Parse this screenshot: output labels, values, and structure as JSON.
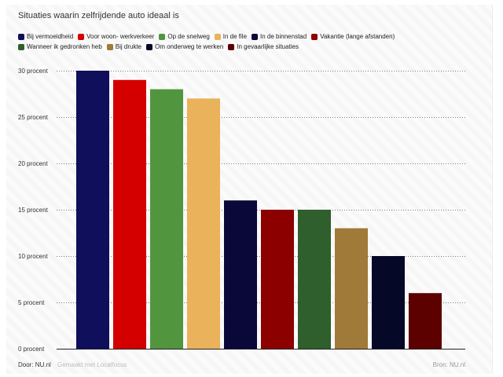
{
  "chart_data": {
    "type": "bar",
    "title": "Situaties waarin zelfrijdende auto ideaal is",
    "categories": [
      "Bij vermoeidheid",
      "Voor woon- werkverkeer",
      "Op de snelweg",
      "In de file",
      "In de binnenstad",
      "Vakantie (lange afstanden)",
      "Wanneer ik gedronken heb",
      "Bij drukte",
      "Om onderweg te werken",
      "In gevaarlijke situaties"
    ],
    "values": [
      30,
      29,
      28,
      27,
      16,
      15,
      15,
      13,
      10,
      6
    ],
    "colors": [
      "#0f0f5c",
      "#d40000",
      "#52953f",
      "#eab25a",
      "#0a0838",
      "#8c0000",
      "#2f5f2c",
      "#9f7a38",
      "#050826",
      "#5c0000"
    ],
    "ylim": [
      0,
      30
    ],
    "yticks": [
      {
        "value": 0,
        "label": "0 procent"
      },
      {
        "value": 5,
        "label": "5 procent"
      },
      {
        "value": 10,
        "label": "10 procent"
      },
      {
        "value": 15,
        "label": "15 procent"
      },
      {
        "value": 20,
        "label": "20 procent"
      },
      {
        "value": 25,
        "label": "25 procent"
      },
      {
        "value": 30,
        "label": "30 procent"
      }
    ],
    "grid": true,
    "legend_position": "top"
  },
  "footer": {
    "author": "Door: NU.nl",
    "made_with": "Gemaakt met Localfocus",
    "source": "Bron: NU.nl"
  }
}
